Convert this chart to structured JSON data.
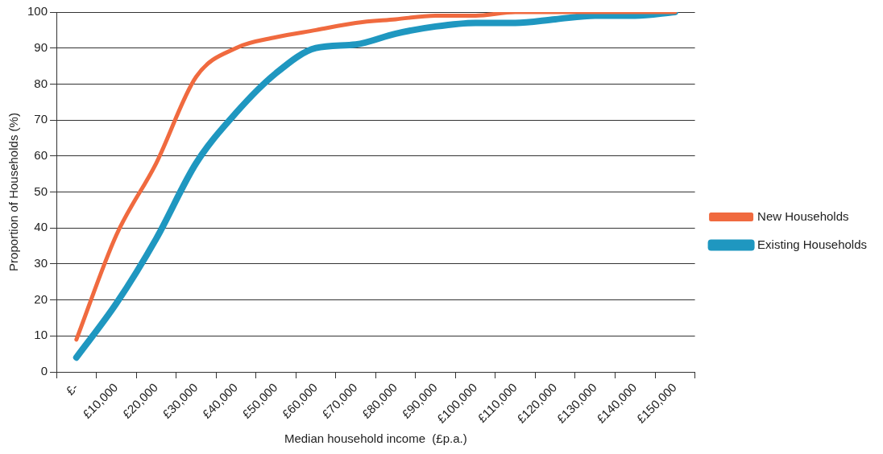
{
  "chart_data": {
    "type": "line",
    "xlabel": "Median household income  (£p.a.)",
    "ylabel": "Proportion of Households (%)",
    "categories": [
      "£-",
      "£10,000",
      "£20,000",
      "£30,000",
      "£40,000",
      "£50,000",
      "£60,000",
      "£70,000",
      "£80,000",
      "£90,000",
      "£100,000",
      "£110,000",
      "£120,000",
      "£130,000",
      "£140,000",
      "£150,000"
    ],
    "series": [
      {
        "name": "Existing Households",
        "color": "#1f97c0",
        "values": [
          4,
          19,
          37,
          58,
          72,
          83,
          90,
          91,
          94,
          96,
          97,
          97,
          98,
          99,
          99,
          100
        ]
      },
      {
        "name": "New Households",
        "color": "#f06a3f",
        "values": [
          9,
          38,
          58,
          82,
          90,
          93,
          95,
          97,
          98,
          99,
          99,
          100,
          100,
          100,
          100,
          100
        ]
      }
    ],
    "ylim": [
      0,
      100
    ],
    "yticks": [
      0,
      10,
      20,
      30,
      40,
      50,
      60,
      70,
      80,
      90,
      100
    ],
    "grid": "y",
    "legend": "right",
    "marker": "none",
    "line_style": "solid"
  }
}
